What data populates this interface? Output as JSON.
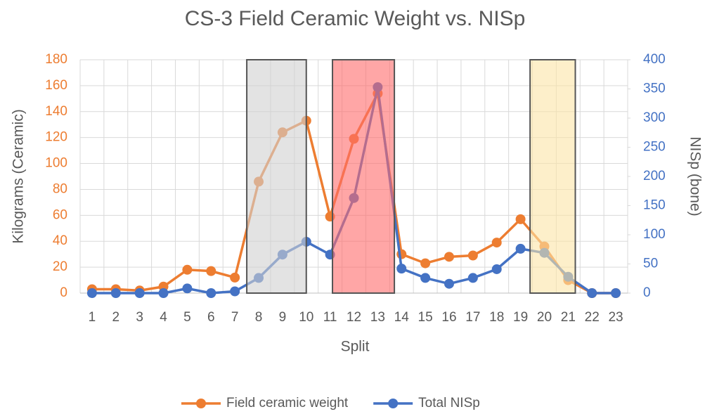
{
  "chart_data": {
    "type": "line",
    "title": "CS-3 Field Ceramic Weight vs. NISp",
    "x_label": "Split",
    "y_label": "Kilograms (Ceramic)",
    "y2_label": "NISp (bone)",
    "categories": [
      "1",
      "2",
      "3",
      "4",
      "5",
      "6",
      "7",
      "8",
      "9",
      "10",
      "11",
      "12",
      "13",
      "14",
      "15",
      "16",
      "17",
      "18",
      "19",
      "20",
      "21",
      "22",
      "23"
    ],
    "series": [
      {
        "name": "Field ceramic weight",
        "color": "#ed7d31",
        "values": [
          3,
          3,
          2,
          5,
          18,
          17,
          12,
          86,
          124,
          133,
          59,
          119,
          154,
          30,
          23,
          28,
          29,
          39,
          57,
          36,
          10,
          0,
          0
        ]
      },
      {
        "name": "Total NISp",
        "color": "#4472c4",
        "axis": "y2",
        "values": [
          0,
          0,
          0,
          0,
          8,
          0,
          3,
          26,
          66,
          88,
          66,
          163,
          353,
          42,
          26,
          16,
          26,
          41,
          76,
          69,
          28,
          0,
          0
        ]
      }
    ],
    "ylim": [
      0,
      180
    ],
    "yticks": [
      0,
      20,
      40,
      60,
      80,
      100,
      120,
      140,
      160,
      180
    ],
    "y2lim": [
      0,
      400
    ],
    "y2ticks": [
      0,
      50,
      100,
      150,
      200,
      250,
      300,
      350,
      400
    ],
    "grid": true,
    "legend": "bottom",
    "shaded_regions": [
      {
        "from": 7.5,
        "to": 10,
        "color": "#d0d0d0"
      },
      {
        "from": 11.1,
        "to": 13.7,
        "color": "#ff6b6b"
      },
      {
        "from": 19.4,
        "to": 21.3,
        "color": "#fbe5a6"
      }
    ]
  }
}
